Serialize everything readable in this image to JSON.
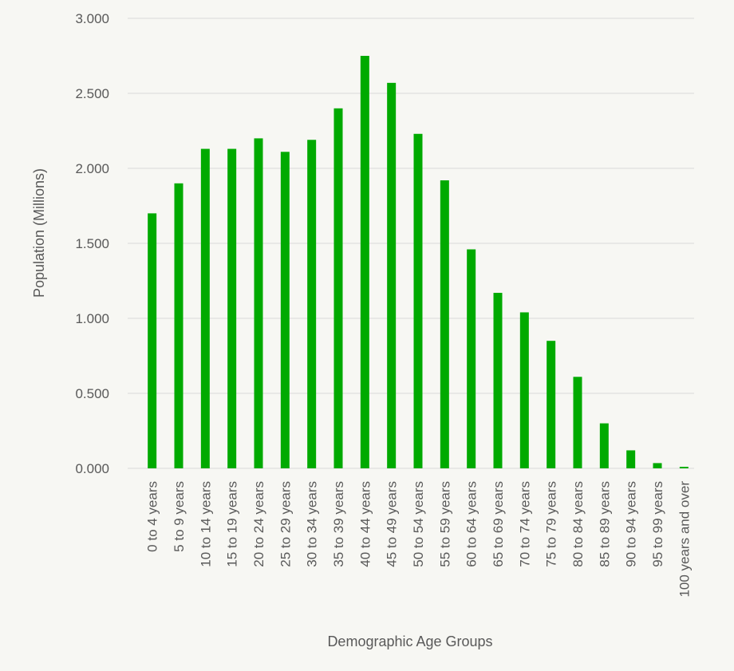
{
  "chart_data": {
    "type": "bar",
    "xlabel": "Demographic Age Groups",
    "ylabel": "Population (Millions)",
    "ylim": [
      0,
      3
    ],
    "yticks": [
      "0.000",
      "0.500",
      "1.000",
      "1.500",
      "2.000",
      "2.500",
      "3.000"
    ],
    "grid": true,
    "bar_color": "#00aa00",
    "categories": [
      "0 to 4 years",
      "5 to 9 years",
      "10 to 14 years",
      "15 to 19 years",
      "20 to 24 years",
      "25 to 29 years",
      "30 to 34 years",
      "35 to 39 years",
      "40 to 44 years",
      "45 to 49 years",
      "50 to 54 years",
      "55 to 59 years",
      "60 to 64 years",
      "65 to 69 years",
      "70 to 74 years",
      "75 to 79 years",
      "80 to 84 years",
      "85 to 89 years",
      "90 to 94 years",
      "95 to 99 years",
      "100 years and over"
    ],
    "values": [
      1.7,
      1.9,
      2.13,
      2.13,
      2.2,
      2.11,
      2.19,
      2.4,
      2.75,
      2.57,
      2.23,
      1.92,
      1.46,
      1.17,
      1.04,
      0.85,
      0.61,
      0.3,
      0.12,
      0.035,
      0.01
    ]
  }
}
